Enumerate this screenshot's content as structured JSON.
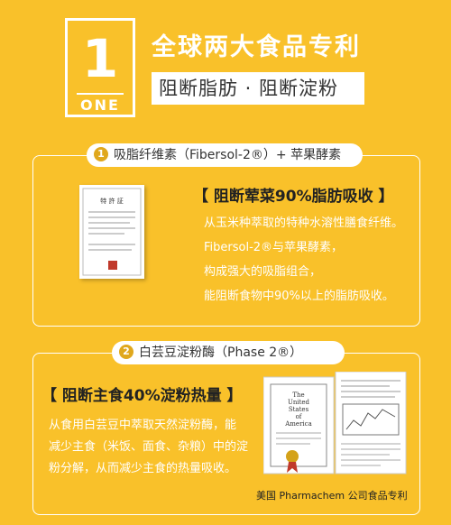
{
  "badge": {
    "number": "1",
    "word": "ONE"
  },
  "title": "全球两大食品专利",
  "subtitle": "阻断脂肪 · 阻断淀粉",
  "section1": {
    "index": "1",
    "pill_label": "吸脂纤维素（Fibersol-2®）+ 苹果酵素",
    "heading": "【 阻断荤菜90%脂肪吸收 】",
    "lines": [
      "从玉米种萃取的特种水溶性膳食纤维。",
      "Fibersol-2®与苹果酵素，",
      "构成强大的吸脂组合，",
      "能阻断食物中90%以上的脂肪吸收。"
    ],
    "certificate_title": "特 許 証"
  },
  "section2": {
    "index": "2",
    "pill_label": "白芸豆淀粉酶（Phase 2®）",
    "heading": "【 阻断主食40%淀粉热量 】",
    "lines": [
      "从食用白芸豆中萃取天然淀粉酶，能",
      "减少主食（米饭、面食、杂粮）中的淀",
      "粉分解，从而减少主食的热量吸收。"
    ],
    "caption": "美国 Pharmachem 公司食品专利",
    "patent_cover_text": [
      "The",
      "United",
      "States",
      "of",
      "America"
    ]
  },
  "colors": {
    "background": "#F9C12A",
    "accent": "#E0A81D",
    "text_dark": "#222222",
    "white": "#FFFFFF",
    "ribbon": "#C0392B"
  }
}
